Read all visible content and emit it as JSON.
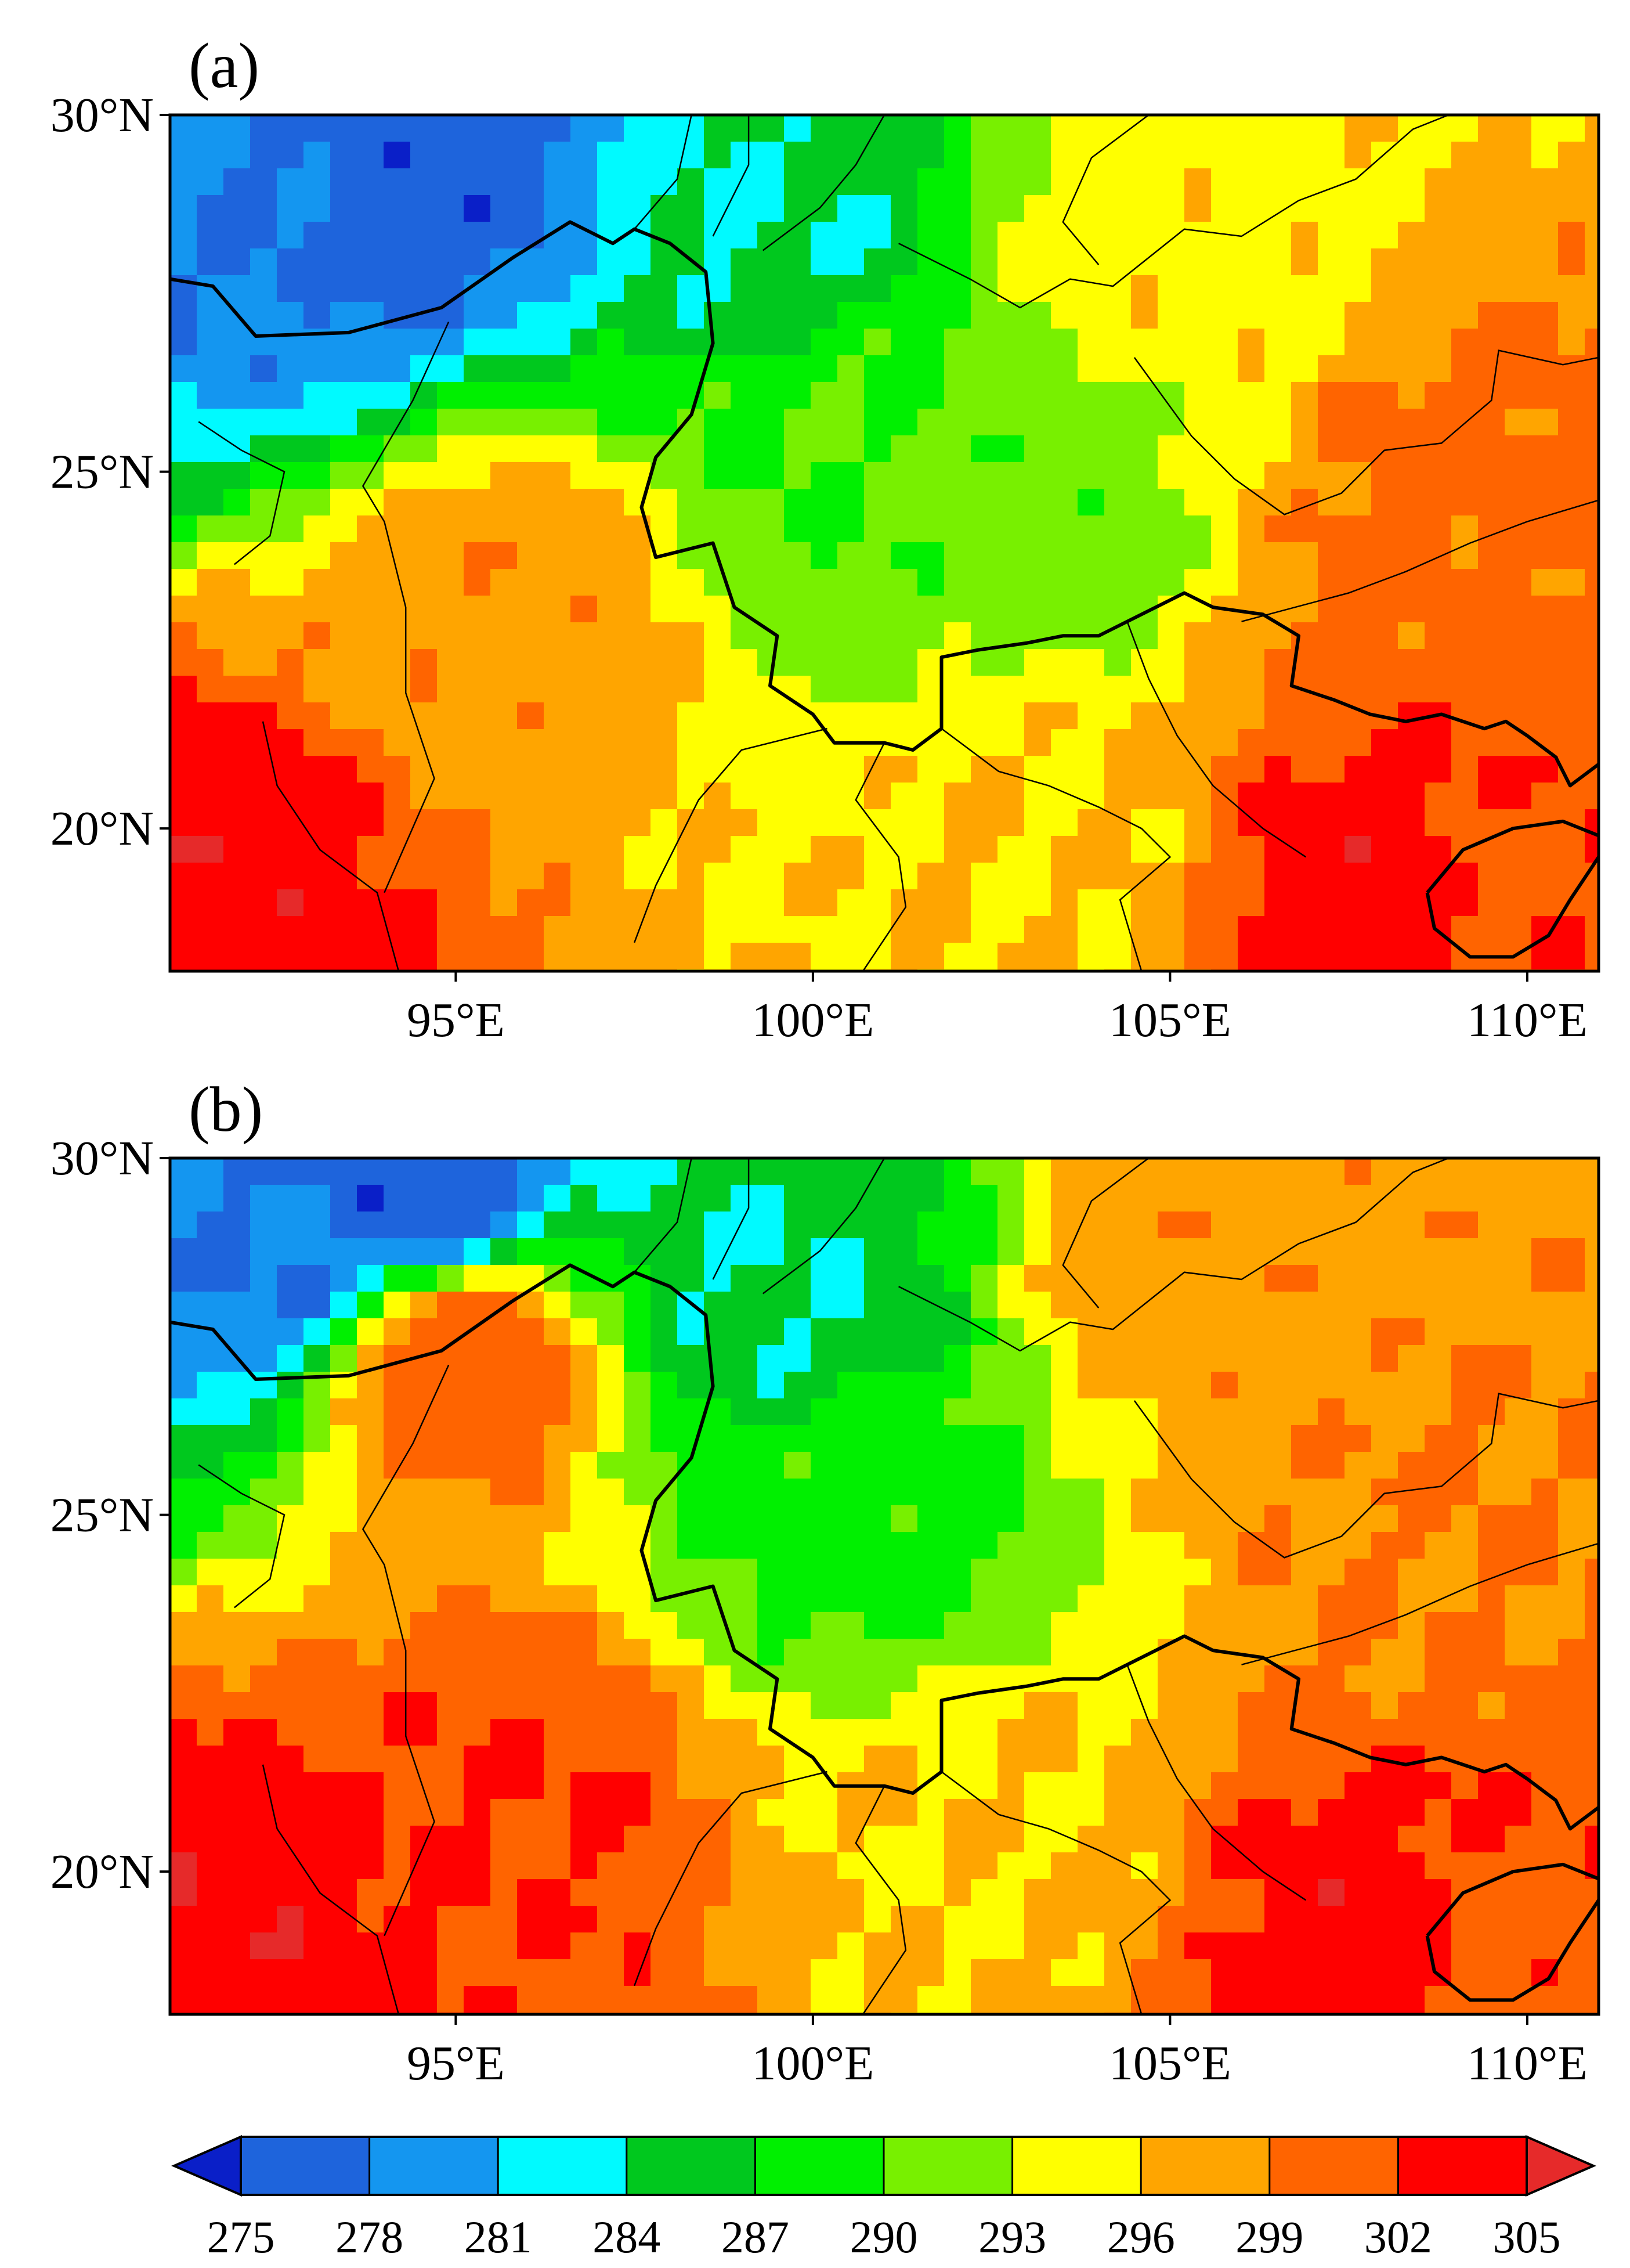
{
  "figure": {
    "panels": [
      {
        "id": "a",
        "title": "(a)"
      },
      {
        "id": "b",
        "title": "(b)"
      }
    ]
  },
  "map": {
    "lon_range": [
      91.0,
      111.0
    ],
    "lat_range": [
      18.0,
      30.0
    ],
    "lat_ticks": [
      30,
      25,
      20
    ],
    "lat_labels": [
      "30°N",
      "25°N",
      "20°N"
    ],
    "lon_ticks": [
      95,
      100,
      105,
      110
    ],
    "lon_labels": [
      "95°E",
      "100°E",
      "105°E",
      "110°E"
    ]
  },
  "colorbar": {
    "levels": [
      275,
      278,
      281,
      284,
      287,
      290,
      293,
      296,
      299,
      302,
      305
    ],
    "labels": [
      "275",
      "278",
      "281",
      "284",
      "287",
      "290",
      "293",
      "296",
      "299",
      "302",
      "305"
    ],
    "colors": [
      "#0a1fc8",
      "#1e64dc",
      "#1496f0",
      "#00faff",
      "#00c81e",
      "#00f000",
      "#78f000",
      "#ffff00",
      "#ffa500",
      "#ff6400",
      "#ff0000",
      "#e62a2a"
    ]
  },
  "chart_data": [
    {
      "type": "heatmap",
      "title": "(a)",
      "field": "temperature",
      "levels": [
        275,
        278,
        281,
        284,
        287,
        290,
        293,
        296,
        299,
        302,
        305
      ],
      "xlabel": "",
      "ylabel": "",
      "x_ticks": [
        "95°E",
        "100°E",
        "105°E",
        "110°E"
      ],
      "y_ticks": [
        "30°N",
        "25°N",
        "20°N"
      ],
      "xlim": [
        91,
        111
      ],
      "ylim": [
        18,
        30
      ],
      "features": [
        {
          "name": "tibetan-plateau-cold-core",
          "lon": 94.5,
          "lat": 29.5,
          "value": 276
        },
        {
          "name": "northwest-cold",
          "lon": 92.5,
          "lat": 28.8,
          "value": 278
        },
        {
          "name": "plateau-cyan",
          "lon": 99.5,
          "lat": 28.6,
          "value": 284
        },
        {
          "name": "yunnan-green",
          "lon": 100.5,
          "lat": 25.3,
          "value": 290
        },
        {
          "name": "yunnan-east-green",
          "lon": 103.0,
          "lat": 24.8,
          "value": 291
        },
        {
          "name": "sichuan-yellow",
          "lon": 104.8,
          "lat": 28.0,
          "value": 295
        },
        {
          "name": "guangxi-orange",
          "lon": 109.0,
          "lat": 24.3,
          "value": 300
        },
        {
          "name": "myanmar-orange",
          "lon": 95.8,
          "lat": 23.0,
          "value": 298
        },
        {
          "name": "laos-yellow",
          "lon": 103.2,
          "lat": 19.6,
          "value": 296
        },
        {
          "name": "bay-of-bengal",
          "lon": 91.5,
          "lat": 19.0,
          "value": 304
        },
        {
          "name": "gulf-of-tonkin",
          "lon": 108.0,
          "lat": 19.0,
          "value": 304
        },
        {
          "name": "hainan-orange",
          "lon": 109.5,
          "lat": 19.0,
          "value": 301
        }
      ]
    },
    {
      "type": "heatmap",
      "title": "(b)",
      "field": "temperature",
      "levels": [
        275,
        278,
        281,
        284,
        287,
        290,
        293,
        296,
        299,
        302,
        305
      ],
      "xlabel": "",
      "ylabel": "",
      "x_ticks": [
        "95°E",
        "100°E",
        "105°E",
        "110°E"
      ],
      "y_ticks": [
        "30°N",
        "25°N",
        "20°N"
      ],
      "xlim": [
        91,
        111
      ],
      "ylim": [
        18,
        30
      ],
      "features": [
        {
          "name": "tibetan-plateau-cold-core",
          "lon": 94.5,
          "lat": 29.6,
          "value": 276
        },
        {
          "name": "northwest-cold",
          "lon": 92.5,
          "lat": 28.8,
          "value": 278
        },
        {
          "name": "plateau-cyan",
          "lon": 99.5,
          "lat": 28.2,
          "value": 284
        },
        {
          "name": "yunnan-green",
          "lon": 100.8,
          "lat": 25.0,
          "value": 289
        },
        {
          "name": "sichuan-orange",
          "lon": 105.5,
          "lat": 28.4,
          "value": 298
        },
        {
          "name": "guangxi-orange",
          "lon": 109.0,
          "lat": 24.5,
          "value": 299
        },
        {
          "name": "myanmar-red",
          "lon": 95.8,
          "lat": 20.8,
          "value": 302
        },
        {
          "name": "assam-red",
          "lon": 95.0,
          "lat": 27.2,
          "value": 301
        },
        {
          "name": "laos-yellow",
          "lon": 102.5,
          "lat": 20.5,
          "value": 296
        },
        {
          "name": "bay-of-bengal",
          "lon": 91.5,
          "lat": 19.0,
          "value": 304
        },
        {
          "name": "gulf-of-tonkin",
          "lon": 108.0,
          "lat": 19.0,
          "value": 304
        },
        {
          "name": "hainan-orange",
          "lon": 109.5,
          "lat": 19.0,
          "value": 301
        }
      ]
    }
  ]
}
